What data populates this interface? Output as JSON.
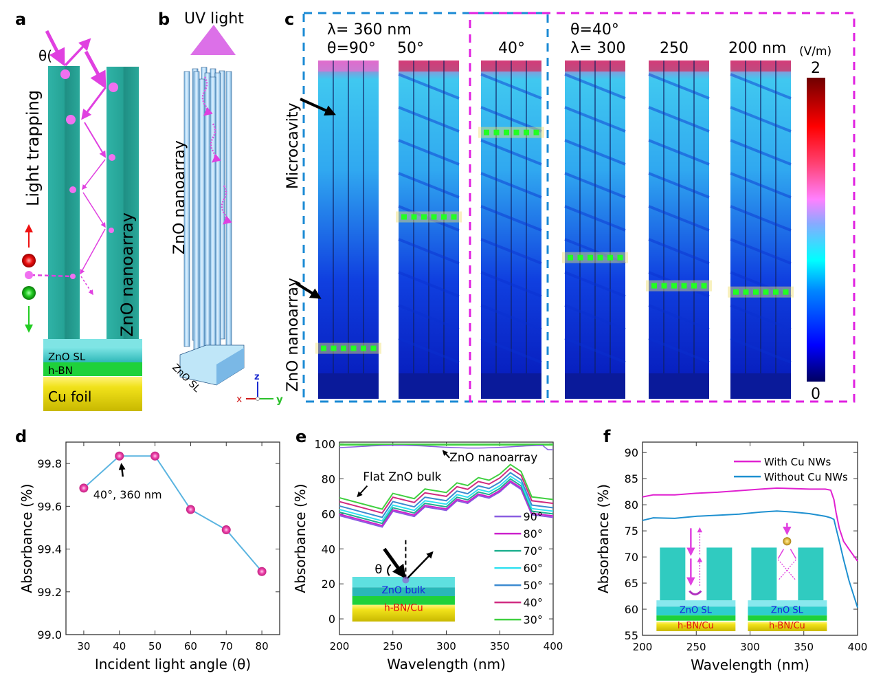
{
  "panels": {
    "a": {
      "label": "a",
      "theta": "θ(",
      "side_label": "Light trapping",
      "array_label": "ZnO nanoarray",
      "layers": [
        "ZnO SL",
        "h-BN",
        "Cu foil"
      ],
      "colors": {
        "rod": "#2aa79b",
        "sl": "#45c9c9",
        "hbn": "#1fd13a",
        "cu": "#e3d20d",
        "photon": "#e74ce8",
        "electron": "#ee1111",
        "hole": "#22cc22"
      }
    },
    "b": {
      "label": "b",
      "top_label": "UV light",
      "side_label": "ZnO nanoarray",
      "base_label": "ZnO SL",
      "axes": {
        "z": "z",
        "x": "x",
        "y": "y"
      }
    },
    "c": {
      "label": "c",
      "left_group_title_line1": "λ= 360 nm",
      "right_group_title_line1": "θ=40°",
      "column_titles": [
        "θ=90°",
        "50°",
        "40°",
        "λ= 300",
        "250",
        "200 nm"
      ],
      "side_labels": [
        "Microcavity",
        "ZnO nanoarray"
      ],
      "colorbar": {
        "unit": "(V/m)",
        "max": "2",
        "min": "0",
        "colors": [
          "#000080",
          "#0000ff",
          "#00aaff",
          "#00ffff",
          "#88aaff",
          "#ff88ff",
          "#ff3355",
          "#ff0000",
          "#800000"
        ]
      },
      "group_colors": {
        "left": "#1a8ad4",
        "right": "#e020e0"
      },
      "marker_fraction_from_top": [
        0.92,
        0.5,
        0.23,
        0.63,
        0.72,
        0.74
      ]
    }
  },
  "chart_data": [
    {
      "id": "d",
      "type": "line",
      "panel_label": "d",
      "title": "",
      "xlabel": "Incident light angle (θ)",
      "ylabel": "Absorbance (%)",
      "xlim": [
        25,
        85
      ],
      "ylim": [
        99.0,
        99.9
      ],
      "xticks": [
        30,
        40,
        50,
        60,
        70,
        80
      ],
      "yticks": [
        99.0,
        99.2,
        99.4,
        99.6,
        99.8
      ],
      "ytick_labels": [
        "99.0",
        "99.2",
        "99.4",
        "99.6",
        "99.8"
      ],
      "x": [
        30,
        40,
        50,
        60,
        70,
        80
      ],
      "series": [
        {
          "name": "Absorbance",
          "values": [
            99.685,
            99.835,
            99.835,
            99.585,
            99.49,
            99.295
          ],
          "color": "#5ab4e0",
          "marker_color": "#e8409c"
        }
      ],
      "annotation": {
        "text": "40°, 360 nm",
        "x": 40,
        "y": 99.835
      },
      "grid": false
    },
    {
      "id": "e",
      "type": "line",
      "panel_label": "e",
      "xlabel": "Wavelength (nm)",
      "ylabel": "Absorbance (%)",
      "xlim": [
        200,
        400
      ],
      "ylim": [
        -9,
        101
      ],
      "xticks": [
        200,
        250,
        300,
        350,
        400
      ],
      "yticks": [
        0,
        20,
        40,
        60,
        80,
        100
      ],
      "x": [
        200,
        240,
        250,
        270,
        280,
        300,
        310,
        320,
        330,
        340,
        350,
        360,
        370,
        380,
        400
      ],
      "bulk_base": [
        59,
        52.5,
        61.5,
        58.5,
        64,
        62,
        67.5,
        66,
        70.5,
        69,
        72.5,
        78,
        74,
        59.5,
        58
      ],
      "series": [
        {
          "name": "90°",
          "offset": 0.0,
          "color": "#8a5ce0"
        },
        {
          "name": "80°",
          "offset": 0.8,
          "color": "#cc22cc"
        },
        {
          "name": "70°",
          "offset": 2.0,
          "color": "#20b090"
        },
        {
          "name": "60°",
          "offset": 3.5,
          "color": "#30e0f0"
        },
        {
          "name": "50°",
          "offset": 5.5,
          "color": "#3a8ad0"
        },
        {
          "name": "40°",
          "offset": 8.0,
          "color": "#d02a80"
        },
        {
          "name": "30°",
          "offset": 10.2,
          "color": "#40d040"
        }
      ],
      "nanoarray": {
        "label": "ZnO nanoarray",
        "value": 99.2,
        "color": "#8a5ce0"
      },
      "annotations": [
        "Flat ZnO bulk",
        "ZnO nanoarray"
      ],
      "inset": {
        "theta": "θ",
        "layers": [
          "ZnO bulk",
          "h-BN/Cu"
        ]
      },
      "legend": "bottom-right",
      "grid": false
    },
    {
      "id": "f",
      "type": "line",
      "panel_label": "f",
      "xlabel": "Wavelength (nm)",
      "ylabel": "Absorbance (%)",
      "xlim": [
        200,
        400
      ],
      "ylim": [
        55,
        92
      ],
      "xticks": [
        200,
        250,
        300,
        350,
        400
      ],
      "yticks": [
        55,
        60,
        65,
        70,
        75,
        80,
        85,
        90
      ],
      "x": [
        200,
        210,
        230,
        250,
        270,
        290,
        310,
        325,
        340,
        355,
        370,
        375,
        378,
        380,
        383,
        387,
        392,
        400
      ],
      "series": [
        {
          "name": "With Cu NWs",
          "color": "#e020d0",
          "values": [
            81.5,
            81.9,
            81.9,
            82.2,
            82.4,
            82.7,
            83.0,
            83.2,
            83.1,
            83.0,
            83.0,
            82.8,
            81.0,
            78.5,
            75.5,
            73.0,
            71.5,
            69.2
          ]
        },
        {
          "name": "Without Cu NWs",
          "color": "#1e90d0",
          "values": [
            77.0,
            77.5,
            77.4,
            77.8,
            78.0,
            78.2,
            78.6,
            78.8,
            78.6,
            78.3,
            77.8,
            77.5,
            77.2,
            75.5,
            73.0,
            69.5,
            65.5,
            60.3
          ]
        }
      ],
      "inset_layers": [
        "ZnO SL",
        "h-BN/Cu"
      ],
      "legend": "top-right",
      "grid": false
    }
  ]
}
